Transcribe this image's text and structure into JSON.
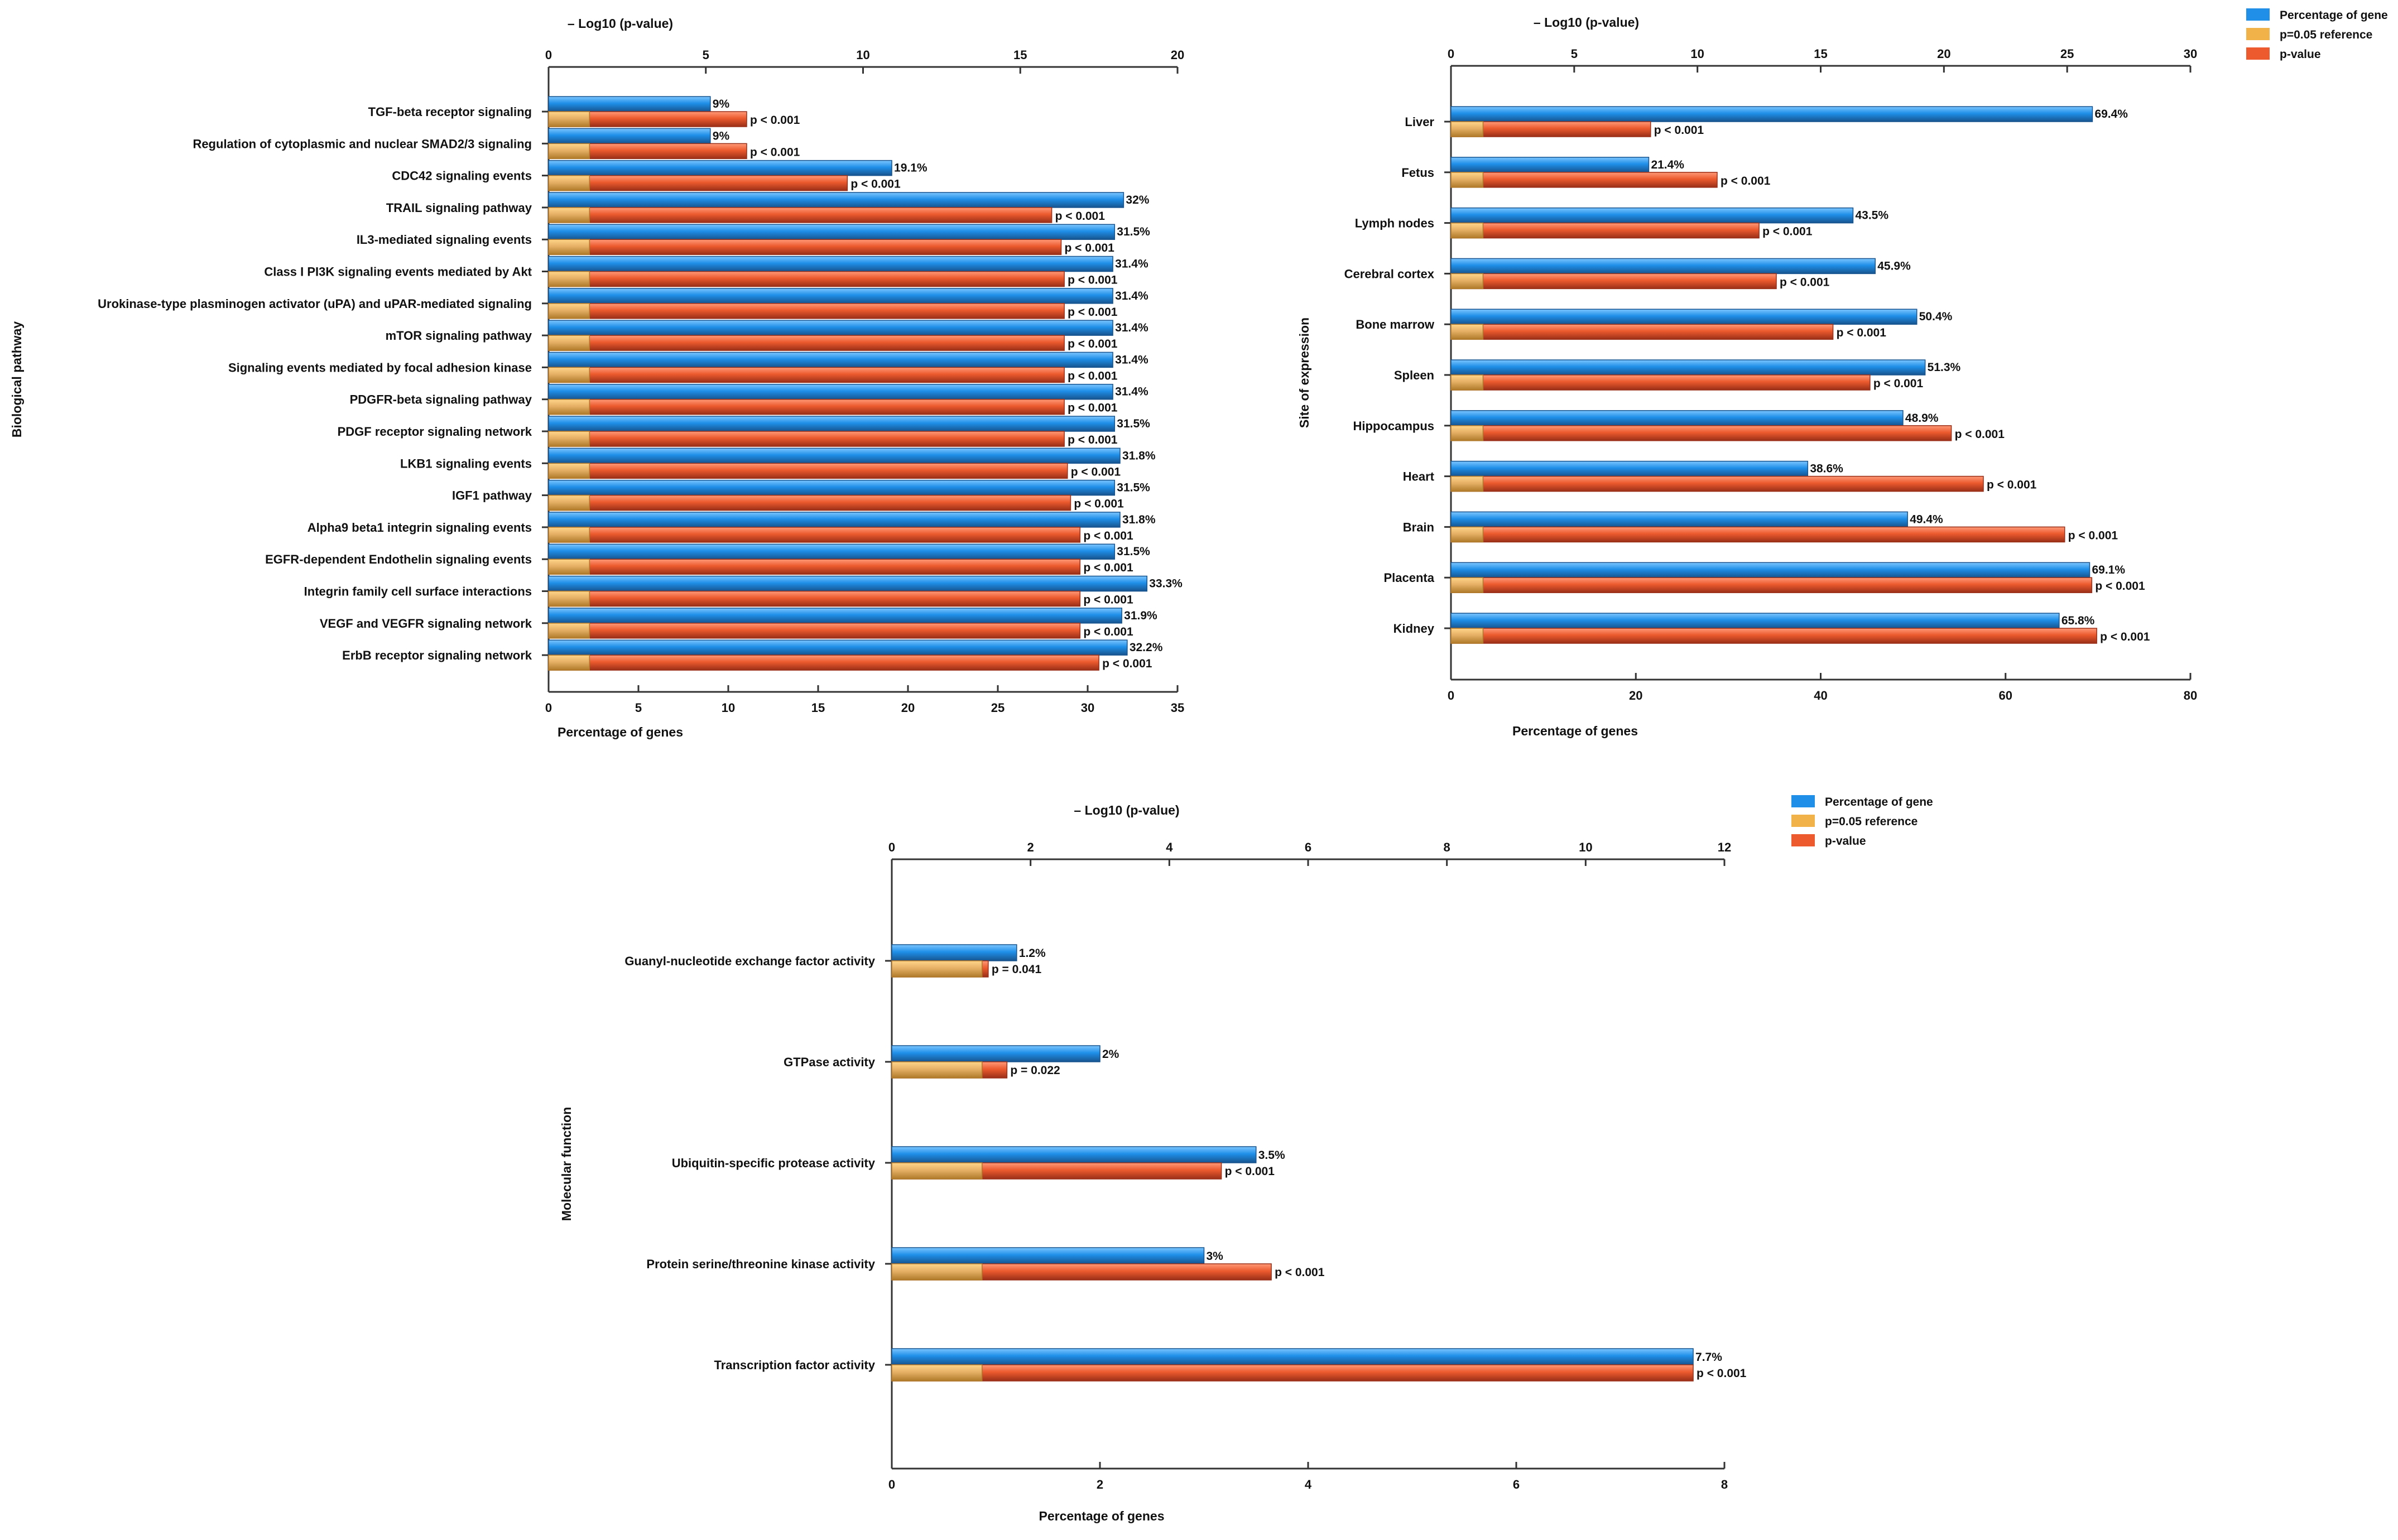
{
  "colors": {
    "percentage": "#1f8fe8",
    "percentage_dark": "#17548f",
    "reference": "#f2b24a",
    "reference_dark": "#b07a2a",
    "pvalue": "#ec5a2e",
    "pvalue_dark": "#9a2f18"
  },
  "chart_data": [
    {
      "id": "pathway",
      "type": "bar",
      "orientation": "horizontal",
      "top_axis_label": "– Log10 (p-value)",
      "bottom_axis_label": "Percentage of genes",
      "ylabel": "Biological pathway",
      "legend": null,
      "top_ticks": [
        "0",
        "5",
        "10",
        "15",
        "20"
      ],
      "bottom_ticks": [
        "0",
        "5",
        "10",
        "15",
        "20",
        "25",
        "30",
        "35"
      ],
      "top_range": [
        0,
        20
      ],
      "bottom_range": [
        0,
        35
      ],
      "reference_neglog10": 1.301,
      "categories": [
        "TGF-beta receptor signaling",
        "Regulation of cytoplasmic and nuclear SMAD2/3 signaling",
        "CDC42 signaling events",
        "TRAIL signaling pathway",
        "IL3-mediated signaling events",
        "Class I PI3K signaling events mediated by Akt",
        "Urokinase-type plasminogen activator (uPA) and uPAR-mediated signaling",
        "mTOR signaling pathway",
        "Signaling events mediated by focal adhesion kinase",
        "PDGFR-beta signaling pathway",
        "PDGF receptor signaling network",
        "LKB1 signaling events",
        "IGF1 pathway",
        "Alpha9 beta1 integrin signaling events",
        "EGFR-dependent Endothelin signaling events",
        "Integrin family cell surface interactions",
        "VEGF and VEGFR signaling network",
        "ErbB receptor signaling network"
      ],
      "percentage_values": [
        9,
        9,
        19.1,
        32,
        31.5,
        31.4,
        31.4,
        31.4,
        31.4,
        31.4,
        31.5,
        31.8,
        31.5,
        31.8,
        31.5,
        33.3,
        31.9,
        32.2
      ],
      "percentage_labels": [
        "9%",
        "9%",
        "19.1%",
        "32%",
        "31.5%",
        "31.4%",
        "31.4%",
        "31.4%",
        "31.4%",
        "31.4%",
        "31.5%",
        "31.8%",
        "31.5%",
        "31.8%",
        "31.5%",
        "33.3%",
        "31.9%",
        "32.2%"
      ],
      "neglog10_p_values": [
        6.3,
        6.3,
        9.5,
        16.0,
        16.3,
        16.4,
        16.4,
        16.4,
        16.4,
        16.4,
        16.4,
        16.5,
        16.6,
        16.9,
        16.9,
        16.9,
        16.9,
        17.5
      ],
      "p_labels": [
        "p < 0.001",
        "p < 0.001",
        "p < 0.001",
        "p < 0.001",
        "p < 0.001",
        "p < 0.001",
        "p < 0.001",
        "p < 0.001",
        "p < 0.001",
        "p < 0.001",
        "p < 0.001",
        "p < 0.001",
        "p < 0.001",
        "p < 0.001",
        "p < 0.001",
        "p < 0.001",
        "p < 0.001",
        "p < 0.001"
      ]
    },
    {
      "id": "site",
      "type": "bar",
      "orientation": "horizontal",
      "top_axis_label": "– Log10 (p-value)",
      "bottom_axis_label": "Percentage of genes",
      "ylabel": "Site of expression",
      "legend": {
        "percentage": "Percentage of gene",
        "reference": "p=0.05 reference",
        "pvalue": "p-value"
      },
      "top_ticks": [
        "0",
        "5",
        "10",
        "15",
        "20",
        "25",
        "30"
      ],
      "bottom_ticks": [
        "0",
        "20",
        "40",
        "60",
        "80"
      ],
      "top_range": [
        0,
        30
      ],
      "bottom_range": [
        0,
        80
      ],
      "reference_neglog10": 1.301,
      "categories": [
        "Liver",
        "Fetus",
        "Lymph nodes",
        "Cerebral cortex",
        "Bone marrow",
        "Spleen",
        "Hippocampus",
        "Heart",
        "Brain",
        "Placenta",
        "Kidney"
      ],
      "percentage_values": [
        69.4,
        21.4,
        43.5,
        45.9,
        50.4,
        51.3,
        48.9,
        38.6,
        49.4,
        69.1,
        65.8
      ],
      "percentage_labels": [
        "69.4%",
        "21.4%",
        "43.5%",
        "45.9%",
        "50.4%",
        "51.3%",
        "48.9%",
        "38.6%",
        "49.4%",
        "69.1%",
        "65.8%"
      ],
      "neglog10_p_values": [
        8.1,
        10.8,
        12.5,
        13.2,
        15.5,
        17.0,
        20.3,
        21.6,
        24.9,
        26.0,
        26.2
      ],
      "p_labels": [
        "p < 0.001",
        "p < 0.001",
        "p < 0.001",
        "p < 0.001",
        "p < 0.001",
        "p < 0.001",
        "p < 0.001",
        "p < 0.001",
        "p < 0.001",
        "p < 0.001",
        "p < 0.001"
      ]
    },
    {
      "id": "function",
      "type": "bar",
      "orientation": "horizontal",
      "top_axis_label": "– Log10 (p-value)",
      "bottom_axis_label": "Percentage of genes",
      "ylabel": "Molecular function",
      "legend": {
        "percentage": "Percentage of gene",
        "reference": "p=0.05 reference",
        "pvalue": "p-value"
      },
      "top_ticks": [
        "0",
        "2",
        "4",
        "6",
        "8",
        "10",
        "12"
      ],
      "bottom_ticks": [
        "0",
        "2",
        "4",
        "6",
        "8"
      ],
      "top_range": [
        0,
        12
      ],
      "bottom_range": [
        0,
        8
      ],
      "reference_neglog10": 1.301,
      "categories": [
        "Guanyl-nucleotide exchange factor activity",
        "GTPase activity",
        "Ubiquitin-specific protease activity",
        "Protein serine/threonine kinase activity",
        "Transcription factor activity"
      ],
      "percentage_values": [
        1.2,
        2,
        3.5,
        3,
        7.7
      ],
      "percentage_labels": [
        "1.2%",
        "2%",
        "3.5%",
        "3%",
        "7.7%"
      ],
      "neglog10_p_values": [
        1.39,
        1.66,
        4.75,
        5.47,
        11.55
      ],
      "p_labels": [
        "p = 0.041",
        "p = 0.022",
        "p < 0.001",
        "p < 0.001",
        "p < 0.001"
      ]
    }
  ]
}
